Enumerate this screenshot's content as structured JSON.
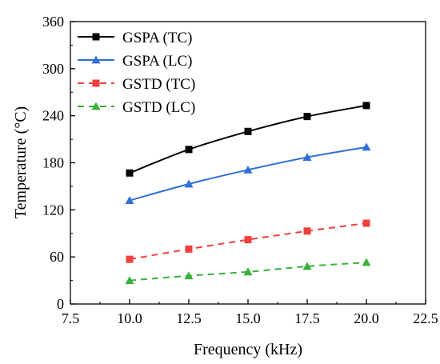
{
  "chart_data": {
    "type": "line",
    "xlabel": "Frequency (kHz)",
    "ylabel": "Temperature (°C)",
    "xlim": [
      7.5,
      22.5
    ],
    "ylim": [
      0,
      360
    ],
    "xticks": [
      7.5,
      10.0,
      12.5,
      15.0,
      17.5,
      20.0,
      22.5
    ],
    "xtick_labels": [
      "7.5",
      "10.0",
      "12.5",
      "15.0",
      "17.5",
      "20.0",
      "22.5"
    ],
    "yticks": [
      0,
      60,
      120,
      180,
      240,
      300,
      360
    ],
    "ytick_labels": [
      "0",
      "60",
      "120",
      "180",
      "240",
      "300",
      "360"
    ],
    "grid": false,
    "legend_position": "top-left",
    "x": [
      10.0,
      12.5,
      15.0,
      17.5,
      20.0
    ],
    "series": [
      {
        "name": "GSPA (TC)",
        "values": [
          167,
          197,
          220,
          239,
          253
        ],
        "color": "#000000",
        "marker": "square",
        "dash": "solid"
      },
      {
        "name": "GSPA (LC)",
        "values": [
          132,
          153,
          171,
          187,
          200
        ],
        "color": "#2f6fd6",
        "marker": "triangle",
        "dash": "solid"
      },
      {
        "name": "GSTD (TC)",
        "values": [
          57,
          70,
          82,
          93,
          103
        ],
        "color": "#f04040",
        "marker": "square",
        "dash": "dashed"
      },
      {
        "name": "GSTD (LC)",
        "values": [
          30,
          36,
          41,
          48,
          53
        ],
        "color": "#3ab03a",
        "marker": "triangle",
        "dash": "dashed"
      }
    ]
  }
}
